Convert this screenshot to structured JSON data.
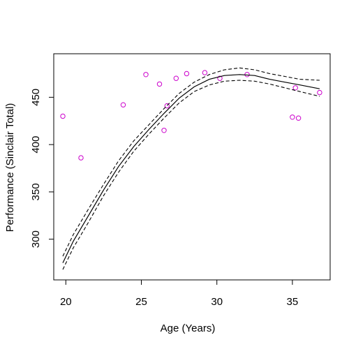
{
  "chart_data": {
    "type": "scatter",
    "title": "",
    "xlabel": "Age (Years)",
    "ylabel": "Performance (Sinclair Total)",
    "xlim": [
      19.2,
      37.5
    ],
    "ylim": [
      257,
      496
    ],
    "xticks": [
      20,
      25,
      30,
      35
    ],
    "yticks": [
      300,
      350,
      400,
      450
    ],
    "point_color": "#cc00cc",
    "points": {
      "x": [
        19.8,
        21.0,
        23.8,
        25.3,
        26.2,
        26.5,
        26.7,
        27.3,
        28.0,
        29.2,
        30.2,
        32.0,
        35.0,
        35.2,
        35.4,
        36.8
      ],
      "y": [
        430,
        386,
        442,
        474,
        464,
        415,
        441,
        470,
        475,
        476,
        470,
        474,
        429,
        460,
        428,
        455
      ]
    },
    "fit": {
      "x": [
        19.8,
        20.5,
        21.5,
        22.5,
        23.5,
        24.5,
        25.5,
        26.5,
        27.5,
        28.5,
        29.5,
        30.5,
        31.5,
        32.5,
        33.5,
        34.5,
        35.5,
        36.8
      ],
      "y": [
        275,
        298,
        325,
        352,
        377,
        398,
        416,
        433,
        449,
        461,
        469,
        473,
        474,
        473,
        469,
        466,
        463,
        459
      ],
      "lower": [
        268,
        291,
        318,
        346,
        371,
        393,
        411,
        428,
        444,
        456,
        463,
        467,
        468,
        467,
        464,
        460,
        456,
        451
      ],
      "upper": [
        282,
        305,
        332,
        358,
        383,
        404,
        421,
        438,
        454,
        466,
        474,
        479,
        481,
        479,
        475,
        472,
        469,
        468
      ]
    }
  }
}
